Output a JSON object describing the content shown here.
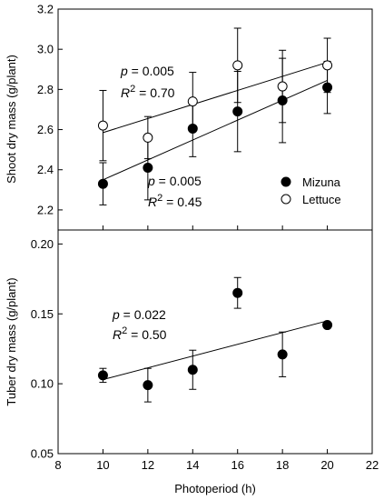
{
  "chart_data": [
    {
      "type": "scatter",
      "ylabel": "Shoot dry mass (g/plant)",
      "xlim": [
        8,
        22
      ],
      "ylim": [
        2.1,
        3.2
      ],
      "yticks": [
        "2.2",
        "2.4",
        "2.6",
        "2.8",
        "3.0",
        "3.2"
      ],
      "grid": false,
      "legend_position": "right",
      "series": [
        {
          "name": "Mizuna",
          "marker": "filled-circle",
          "color": "#000000",
          "x": [
            10,
            12,
            14,
            16,
            18,
            20
          ],
          "y": [
            2.33,
            2.41,
            2.605,
            2.69,
            2.745,
            2.81
          ],
          "err": [
            0.105,
            0.16,
            0.14,
            0.2,
            0.21,
            0.13
          ],
          "fit": {
            "x": [
              10,
              20
            ],
            "y": [
              2.35,
              2.845
            ]
          }
        },
        {
          "name": "Lettuce",
          "marker": "open-circle",
          "color": "#000000",
          "x": [
            10,
            12,
            14,
            16,
            18,
            20
          ],
          "y": [
            2.62,
            2.56,
            2.74,
            2.92,
            2.815,
            2.92
          ],
          "err": [
            0.175,
            0.105,
            0.145,
            0.185,
            0.18,
            0.135
          ],
          "fit": {
            "x": [
              10,
              20
            ],
            "y": [
              2.585,
              2.935
            ]
          }
        }
      ],
      "annotations": [
        {
          "p_label": "p",
          "p_value": " = 0.005",
          "r_label": "R",
          "r_exp": "2",
          "r_value": " = 0.70"
        },
        {
          "p_label": "p",
          "p_value": " = 0.005",
          "r_label": "R",
          "r_exp": "2",
          "r_value": " = 0.45"
        }
      ]
    },
    {
      "type": "scatter",
      "xlabel": "Photoperiod (h)",
      "ylabel": "Tuber dry mass (g/plant)",
      "xlim": [
        8,
        22
      ],
      "ylim": [
        0.05,
        0.21
      ],
      "xticks": [
        "8",
        "10",
        "12",
        "14",
        "16",
        "18",
        "20",
        "22"
      ],
      "yticks": [
        "0.05",
        "0.10",
        "0.15",
        "0.20"
      ],
      "grid": false,
      "series": [
        {
          "marker": "filled-circle",
          "color": "#000000",
          "x": [
            10,
            12,
            14,
            16,
            18,
            20
          ],
          "y": [
            0.106,
            0.099,
            0.11,
            0.165,
            0.121,
            0.142
          ],
          "err": [
            0.005,
            0.012,
            0.014,
            0.011,
            0.016,
            0.002
          ],
          "fit": {
            "x": [
              10,
              20
            ],
            "y": [
              0.103,
              0.145
            ]
          }
        }
      ],
      "annotations": [
        {
          "p_label": "p",
          "p_value": " = 0.022",
          "r_label": "R",
          "r_exp": "2",
          "r_value": " = 0.50"
        }
      ]
    }
  ]
}
